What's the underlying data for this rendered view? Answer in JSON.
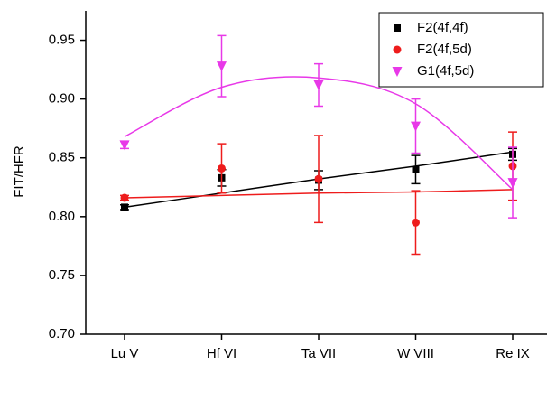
{
  "chart_data": {
    "type": "scatter",
    "y_label": "FIT/HFR",
    "categories": [
      "Lu V",
      "Hf VI",
      "Ta VII",
      "W VIII",
      "Re IX"
    ],
    "ylim": [
      0.7,
      0.975
    ],
    "yticks": [
      {
        "value": 0.7,
        "label": "0.70"
      },
      {
        "value": 0.75,
        "label": "0.75"
      },
      {
        "value": 0.8,
        "label": "0.80"
      },
      {
        "value": 0.85,
        "label": "0.85"
      },
      {
        "value": 0.9,
        "label": "0.90"
      },
      {
        "value": 0.95,
        "label": "0.95"
      }
    ],
    "legend": "upper right",
    "series": [
      {
        "name": "F2(4f,4f)",
        "color": "#000000",
        "marker": "square",
        "values": [
          0.808,
          0.833,
          0.831,
          0.84,
          0.853
        ],
        "errors": [
          0.002,
          0.007,
          0.008,
          0.012,
          0.005
        ],
        "fit": [
          0.808,
          0.82,
          0.832,
          0.843,
          0.855
        ]
      },
      {
        "name": "F2(4f,5d)",
        "color": "#ee1c1c",
        "marker": "circle",
        "values": [
          0.816,
          0.841,
          0.832,
          0.795,
          0.843
        ],
        "errors": [
          0.002,
          0.021,
          0.037,
          0.027,
          0.029
        ],
        "fit": [
          0.816,
          0.818,
          0.82,
          0.821,
          0.823
        ]
      },
      {
        "name": "G1(4f,5d)",
        "color": "#e838e8",
        "marker": "triangle-down",
        "values": [
          0.861,
          0.928,
          0.912,
          0.877,
          0.829
        ],
        "errors": [
          0.003,
          0.026,
          0.018,
          0.023,
          0.03
        ],
        "fit": [
          0.868,
          0.91,
          0.918,
          0.896,
          0.823
        ]
      }
    ]
  }
}
